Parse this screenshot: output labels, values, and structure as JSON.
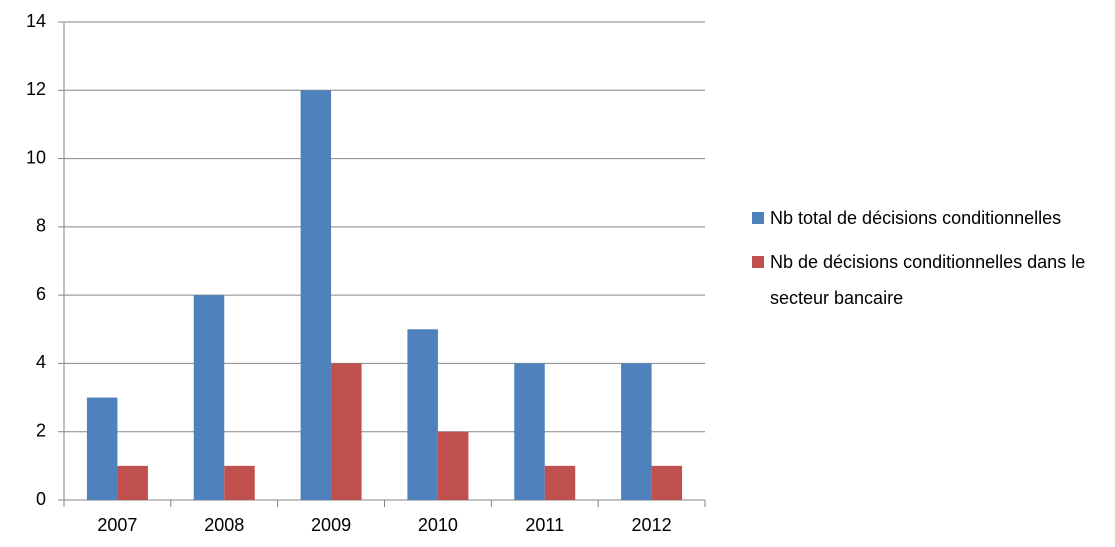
{
  "chart_data": {
    "type": "bar",
    "categories": [
      "2007",
      "2008",
      "2009",
      "2010",
      "2011",
      "2012"
    ],
    "series": [
      {
        "name": "Nb total de décisions conditionnelles",
        "color": "#4f81bd",
        "values": [
          3,
          6,
          12,
          5,
          4,
          4
        ]
      },
      {
        "name": "Nb de décisions conditionnelles dans le secteur bancaire",
        "color": "#c0504d",
        "values": [
          1,
          1,
          4,
          2,
          1,
          1
        ]
      }
    ],
    "ylim": [
      0,
      14
    ],
    "yticks": [
      0,
      2,
      4,
      6,
      8,
      10,
      12,
      14
    ],
    "grid": true,
    "legend": "right"
  }
}
